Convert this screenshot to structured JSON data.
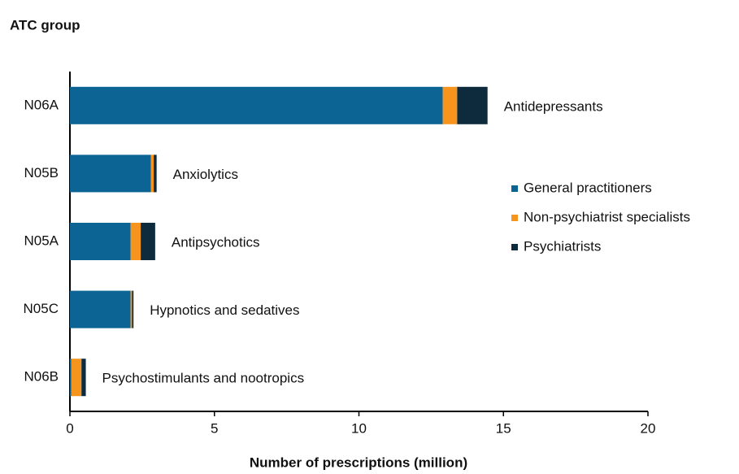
{
  "chart_data": {
    "type": "stacked-barh",
    "y_axis_label": "ATC group",
    "x_axis_label": "Number of prescriptions (million)",
    "categories": [
      "N06A",
      "N05B",
      "N05A",
      "N05C",
      "N06B"
    ],
    "category_descriptions": [
      "Antidepressants",
      "Anxiolytics",
      "Antipsychotics",
      "Hypnotics and sedatives",
      "Psychostimulants and nootropics"
    ],
    "series": [
      {
        "name": "General practitioners",
        "color": "#0b6494",
        "values": [
          12.9,
          2.8,
          2.1,
          2.1,
          0.05
        ]
      },
      {
        "name": "Non-psychiatrist specialists",
        "color": "#f7941d",
        "values": [
          0.5,
          0.1,
          0.35,
          0.05,
          0.35
        ]
      },
      {
        "name": "Psychiatrists",
        "color": "#0d2b3d",
        "values": [
          1.05,
          0.1,
          0.5,
          0.05,
          0.15
        ]
      }
    ],
    "xlim": [
      0,
      20
    ],
    "xticks": [
      0,
      5,
      10,
      15,
      20
    ],
    "legend": "right",
    "grid": false
  }
}
